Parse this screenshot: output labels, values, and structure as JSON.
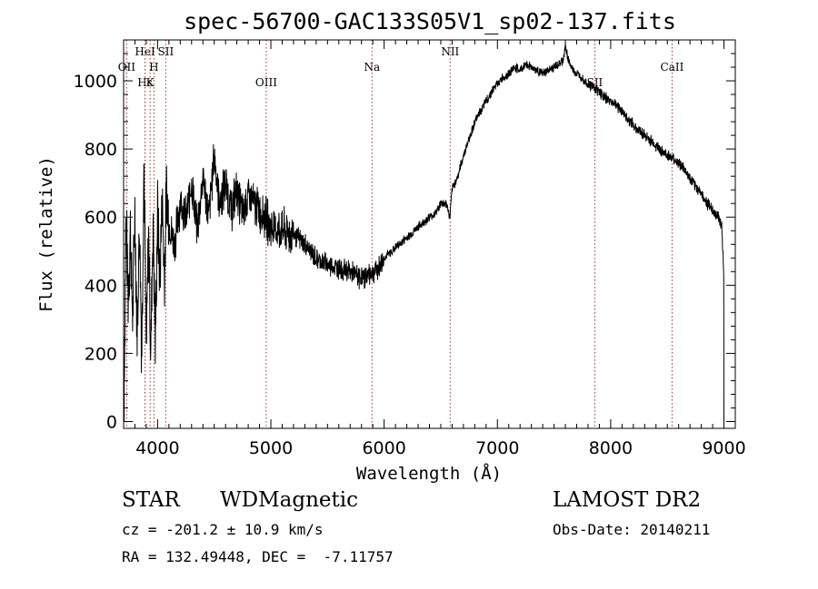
{
  "chart_data": {
    "type": "line",
    "title": "spec-56700-GAC133S05V1_sp02-137.fits",
    "xlabel": "Wavelength (Å)",
    "ylabel": "Flux (relative)",
    "xlim": [
      3700,
      9100
    ],
    "ylim": [
      -20,
      1120
    ],
    "xticks": [
      4000,
      5000,
      6000,
      7000,
      8000,
      9000
    ],
    "xtick_labels": [
      "4000",
      "5000",
      "6000",
      "7000",
      "8000",
      "9000"
    ],
    "yticks": [
      0,
      200,
      400,
      600,
      800,
      1000
    ],
    "ytick_labels": [
      "0",
      "200",
      "400",
      "600",
      "800",
      "1000"
    ],
    "grid": false,
    "line_color": "#000000",
    "marker_color": "#b03030",
    "spectral_lines": [
      {
        "name": "OII",
        "x": 3727,
        "row": 2
      },
      {
        "name": "Hε",
        "x": 3889,
        "row": 3
      },
      {
        "name": "HeI",
        "x": 3889,
        "row": 1
      },
      {
        "name": "K",
        "x": 3934,
        "row": 3
      },
      {
        "name": "H",
        "x": 3968,
        "row": 2
      },
      {
        "name": "SII",
        "x": 4072,
        "row": 1
      },
      {
        "name": "OIII",
        "x": 4959,
        "row": 3
      },
      {
        "name": "Na",
        "x": 5893,
        "row": 2
      },
      {
        "name": "NII",
        "x": 6583,
        "row": 1
      },
      {
        "name": "SII",
        "x": 7860,
        "row": 3
      },
      {
        "name": "CaII",
        "x": 8542,
        "row": 2
      }
    ],
    "series": [
      {
        "x": [
          3705,
          3720,
          3740,
          3760,
          3780,
          3800,
          3820,
          3840,
          3860,
          3880,
          3900,
          3920,
          3940,
          3960,
          3980,
          4000,
          4020,
          4040,
          4060,
          4080,
          4100,
          4150,
          4200,
          4250,
          4300,
          4350,
          4400,
          4450,
          4500,
          4550,
          4600,
          4650,
          4700,
          4750,
          4800,
          4850,
          4900,
          4950,
          5000,
          5100,
          5200,
          5300,
          5400,
          5500,
          5600,
          5700,
          5800,
          5850,
          5900,
          5950,
          6000,
          6100,
          6200,
          6300,
          6400,
          6450,
          6500,
          6550,
          6580,
          6600,
          6650,
          6700,
          6750,
          6800,
          6850,
          6900,
          6950,
          7000,
          7050,
          7100,
          7150,
          7200,
          7250,
          7300,
          7350,
          7400,
          7450,
          7500,
          7550,
          7580,
          7600,
          7620,
          7650,
          7700,
          7750,
          7800,
          7850,
          7900,
          7950,
          8000,
          8050,
          8100,
          8200,
          8300,
          8400,
          8500,
          8600,
          8650,
          8700,
          8750,
          8800,
          8850,
          8900,
          8950,
          8980,
          9000
        ],
        "y": [
          120,
          600,
          380,
          560,
          300,
          620,
          250,
          590,
          200,
          780,
          180,
          560,
          200,
          600,
          230,
          620,
          400,
          660,
          420,
          680,
          580,
          520,
          650,
          590,
          700,
          560,
          720,
          600,
          780,
          640,
          700,
          620,
          680,
          610,
          660,
          640,
          620,
          600,
          570,
          560,
          550,
          520,
          480,
          460,
          450,
          440,
          420,
          430,
          440,
          450,
          480,
          510,
          540,
          570,
          600,
          610,
          640,
          640,
          600,
          680,
          720,
          780,
          830,
          880,
          910,
          940,
          970,
          990,
          1010,
          1020,
          1040,
          1030,
          1050,
          1040,
          1030,
          1020,
          1030,
          1040,
          1050,
          1060,
          1100,
          1070,
          1040,
          1020,
          1010,
          990,
          980,
          970,
          950,
          940,
          930,
          910,
          870,
          840,
          810,
          780,
          760,
          740,
          710,
          690,
          670,
          640,
          620,
          600,
          580,
          420
        ]
      }
    ]
  },
  "info": {
    "class": "STAR",
    "subclass": "WDMagnetic",
    "survey": "LAMOST DR2",
    "cz": "cz = -201.2 ± 10.9 km/s",
    "obs_date": "Obs-Date: 20140211",
    "coords": "RA = 132.49448, DEC =  -7.11757"
  }
}
